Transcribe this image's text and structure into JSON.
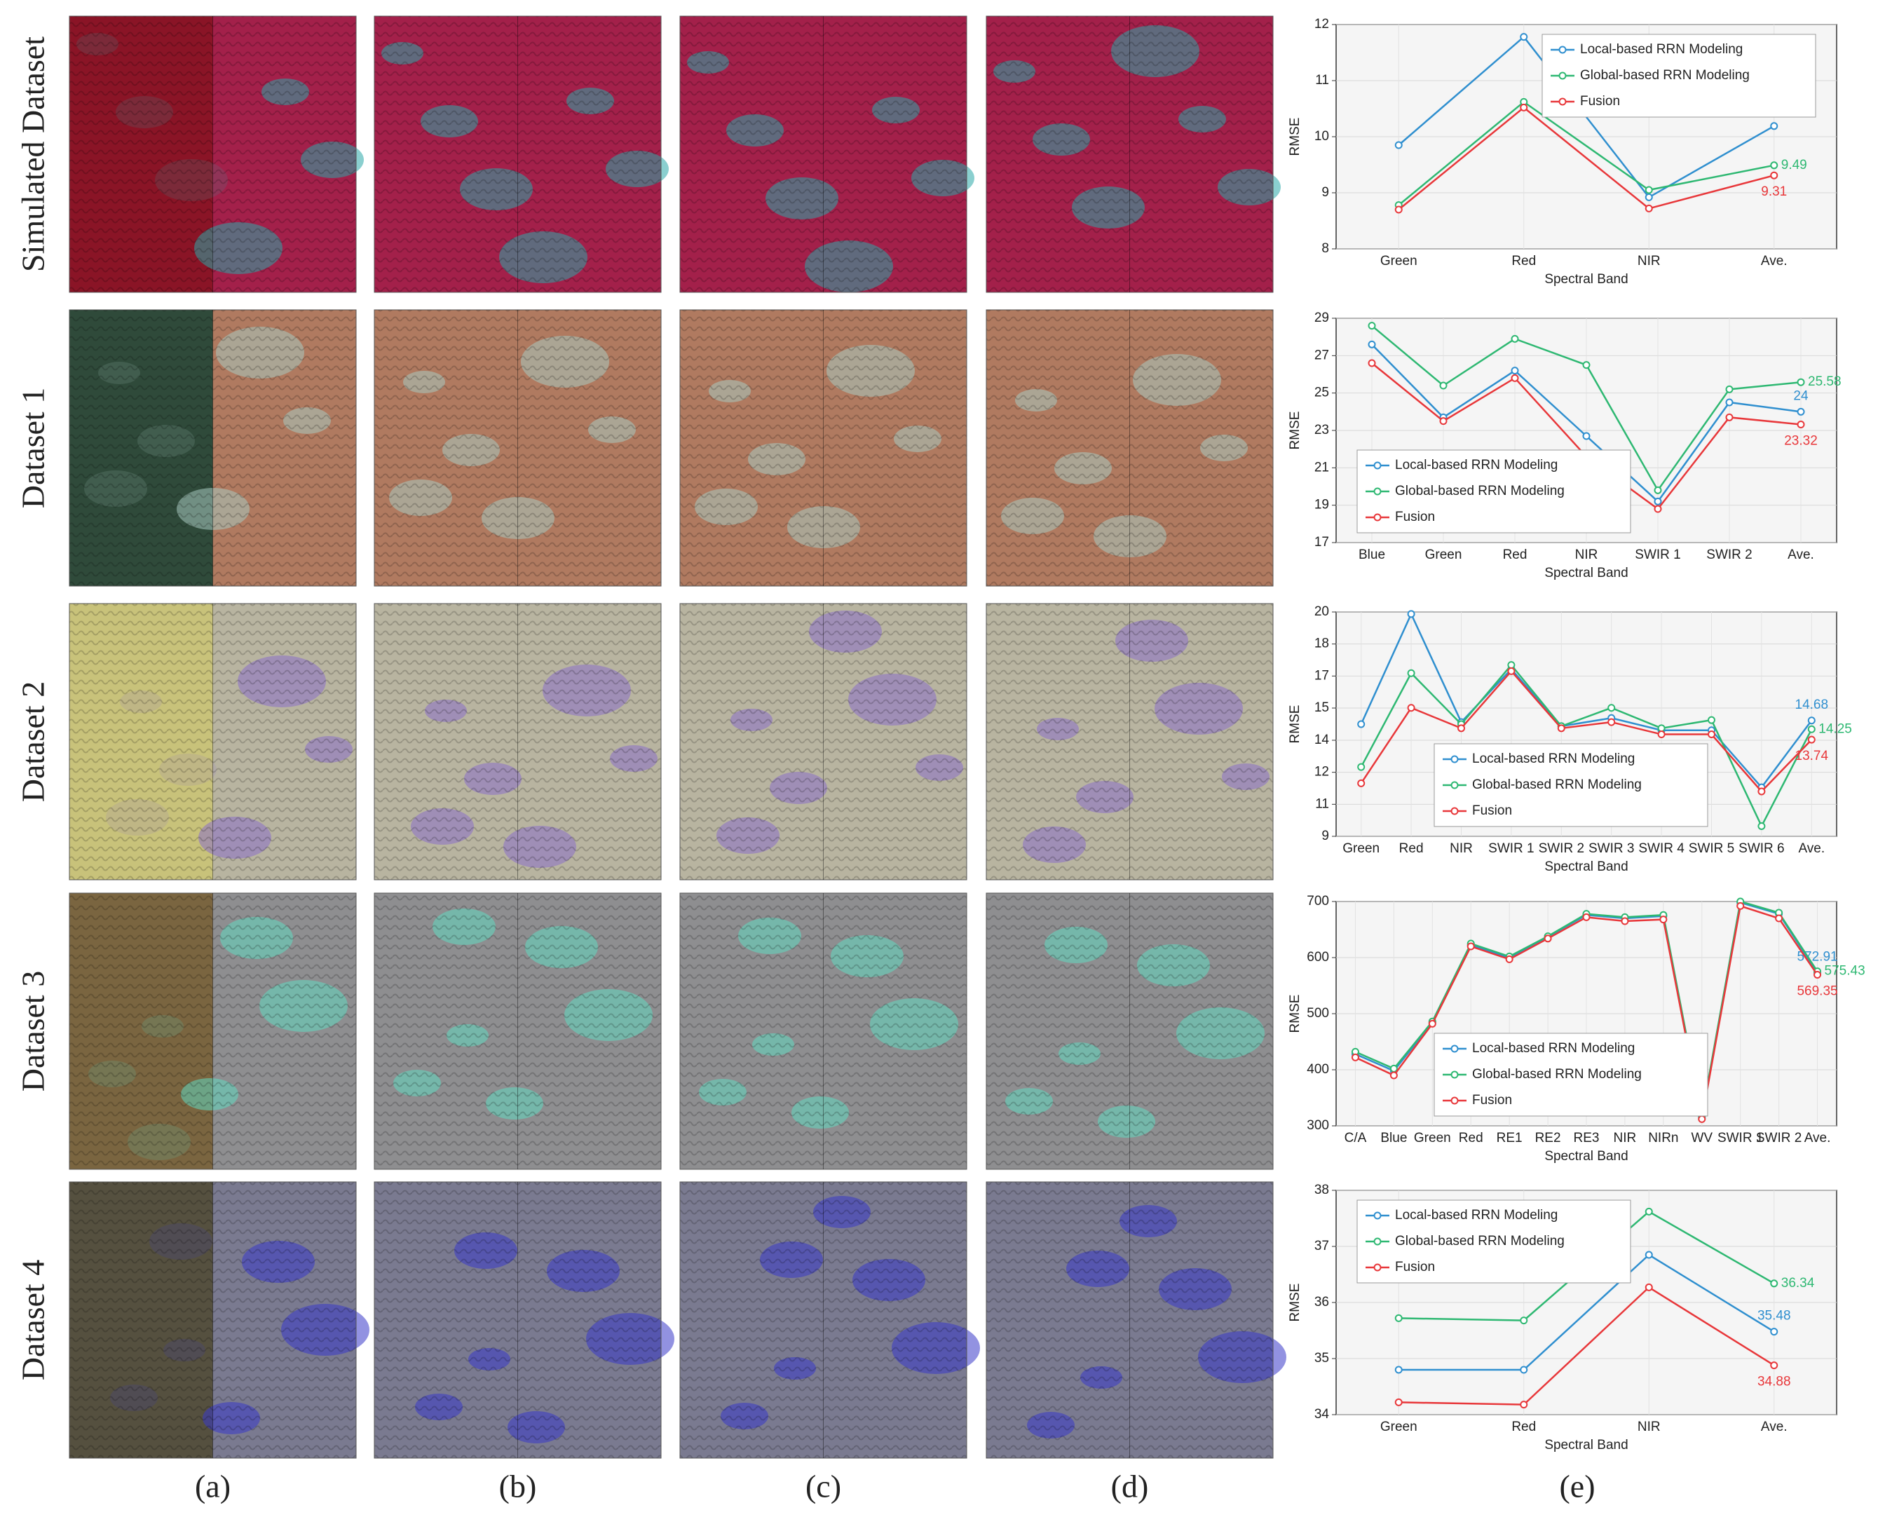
{
  "row_labels": [
    "Simulated Dataset",
    "Dataset 1",
    "Dataset 2",
    "Dataset 3",
    "Dataset 4"
  ],
  "panel_labels": [
    "(a)",
    "(b)",
    "(c)",
    "(d)",
    "(e)"
  ],
  "chart_data": [
    {
      "type": "line",
      "xlabel": "Spectral Band",
      "ylabel": "RMSE",
      "categories": [
        "Green",
        "Red",
        "NIR",
        "Ave."
      ],
      "series": [
        {
          "name": "Local-based RRN Modeling",
          "color": "#2f8fcf",
          "values": [
            9.85,
            11.78,
            8.92,
            10.19
          ]
        },
        {
          "name": "Global-based RRN Modeling",
          "color": "#2eb872",
          "values": [
            8.78,
            10.62,
            9.05,
            9.49
          ]
        },
        {
          "name": "Fusion",
          "color": "#e8373a",
          "values": [
            8.7,
            10.52,
            8.72,
            9.31
          ]
        }
      ],
      "ylim": [
        8,
        12
      ],
      "yticks": [
        8,
        9,
        10,
        11,
        12
      ],
      "grid": true,
      "legend": "upper right",
      "data_labels": "last"
    },
    {
      "type": "line",
      "xlabel": "Spectral Band",
      "ylabel": "RMSE",
      "categories": [
        "Blue",
        "Green",
        "Red",
        "NIR",
        "SWIR 1",
        "SWIR 2",
        "Ave."
      ],
      "series": [
        {
          "name": "Local-based RRN Modeling",
          "color": "#2f8fcf",
          "values": [
            27.6,
            23.7,
            26.2,
            22.7,
            19.2,
            24.5,
            24
          ]
        },
        {
          "name": "Global-based RRN Modeling",
          "color": "#2eb872",
          "values": [
            28.6,
            25.4,
            27.9,
            26.5,
            19.8,
            25.2,
            25.58
          ]
        },
        {
          "name": "Fusion",
          "color": "#e8373a",
          "values": [
            26.6,
            23.5,
            25.8,
            21.6,
            18.8,
            23.7,
            23.32
          ]
        }
      ],
      "ylim": [
        17,
        29
      ],
      "yticks": [
        17,
        19,
        21,
        23,
        25,
        27,
        29
      ],
      "grid": true,
      "legend": "lower left",
      "data_labels": "last"
    },
    {
      "type": "line",
      "xlabel": "Spectral Band",
      "ylabel": "RMSE",
      "categories": [
        "Green",
        "Red",
        "NIR",
        "SWIR 1",
        "SWIR 2",
        "SWIR 3",
        "SWIR 4",
        "SWIR 5",
        "SWIR 6",
        "Ave."
      ],
      "series": [
        {
          "name": "Local-based RRN Modeling",
          "color": "#2f8fcf",
          "values": [
            14.5,
            19.9,
            14.6,
            17.2,
            14.4,
            14.8,
            14.2,
            14.2,
            11.4,
            14.68
          ]
        },
        {
          "name": "Global-based RRN Modeling",
          "color": "#2eb872",
          "values": [
            12.4,
            17.0,
            14.5,
            17.4,
            14.4,
            15.3,
            14.3,
            14.7,
            9.5,
            14.25
          ]
        },
        {
          "name": "Fusion",
          "color": "#e8373a",
          "values": [
            11.6,
            15.3,
            14.3,
            17.1,
            14.3,
            14.6,
            14.0,
            14.0,
            11.2,
            13.74
          ]
        }
      ],
      "ylim": [
        9,
        20
      ],
      "yticks": [
        9,
        {
          "value": 10.57,
          "label": "11"
        },
        {
          "value": 12.14,
          "label": "12"
        },
        {
          "value": 13.71,
          "label": "14"
        },
        {
          "value": 15.29,
          "label": "15"
        },
        {
          "value": 16.86,
          "label": "17"
        },
        {
          "value": 18.43,
          "label": "18"
        },
        20
      ],
      "grid": true,
      "legend": "lower center",
      "data_labels": "last"
    },
    {
      "type": "line",
      "xlabel": "Spectral Band",
      "ylabel": "RMSE",
      "categories": [
        "C/A",
        "Blue",
        "Green",
        "Red",
        "RE1",
        "RE2",
        "RE3",
        "NIR",
        "NIRn",
        "WV",
        "SWIR 1",
        "SWIR 2",
        "Ave."
      ],
      "series": [
        {
          "name": "Local-based RRN Modeling",
          "color": "#2f8fcf",
          "values": [
            428,
            398,
            484,
            622,
            600,
            637,
            676,
            670,
            674,
            315,
            698,
            678,
            572.91
          ]
        },
        {
          "name": "Global-based RRN Modeling",
          "color": "#2eb872",
          "values": [
            432,
            402,
            486,
            625,
            602,
            638,
            678,
            672,
            676,
            318,
            700,
            680,
            575.43
          ]
        },
        {
          "name": "Fusion",
          "color": "#e8373a",
          "values": [
            422,
            390,
            482,
            620,
            597,
            634,
            672,
            665,
            668,
            312,
            692,
            670,
            569.35
          ]
        }
      ],
      "ylim": [
        300,
        700
      ],
      "yticks": [
        300,
        400,
        500,
        600,
        700
      ],
      "grid": true,
      "legend": "lower center",
      "data_labels": "last"
    },
    {
      "type": "line",
      "xlabel": "Spectral Band",
      "ylabel": "RMSE",
      "categories": [
        "Green",
        "Red",
        "NIR",
        "Ave."
      ],
      "series": [
        {
          "name": "Local-based RRN Modeling",
          "color": "#2f8fcf",
          "values": [
            34.8,
            34.8,
            36.85,
            35.48
          ]
        },
        {
          "name": "Global-based RRN Modeling",
          "color": "#2eb872",
          "values": [
            35.72,
            35.68,
            37.62,
            36.34
          ]
        },
        {
          "name": "Fusion",
          "color": "#e8373a",
          "values": [
            34.22,
            34.18,
            36.27,
            34.88
          ]
        }
      ],
      "ylim": [
        34,
        38
      ],
      "yticks": [
        34,
        35,
        36,
        37,
        38
      ],
      "grid": true,
      "legend": "upper left",
      "data_labels": "last"
    }
  ]
}
